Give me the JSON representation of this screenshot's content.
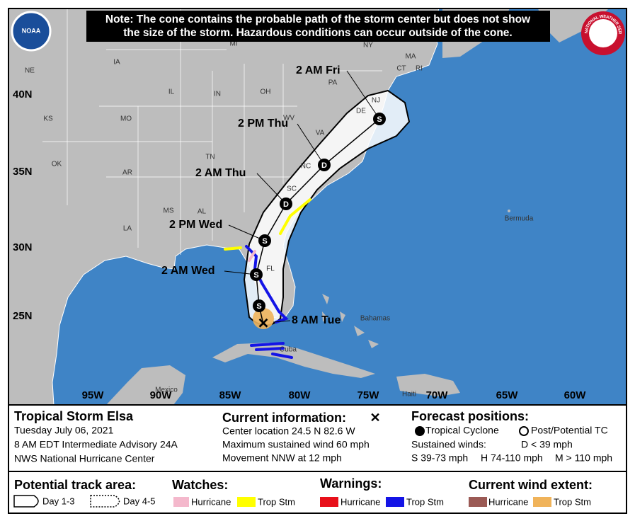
{
  "note": [
    "Note: The cone contains the probable path of the storm center but does not show",
    "the size of the storm. Hazardous conditions can occur outside of the cone."
  ],
  "logos": {
    "noaa": "NOAA",
    "nws": "NATIONAL WEATHER SERVICE"
  },
  "map": {
    "places": [
      "NE",
      "IA",
      "MI",
      "NY",
      "MA",
      "CT",
      "RI",
      "PA",
      "NJ",
      "DE",
      "OH",
      "IL",
      "IN",
      "WV",
      "KS",
      "MO",
      "VA",
      "TN",
      "NC",
      "OK",
      "AR",
      "SC",
      "MS",
      "AL",
      "LA",
      "FL",
      "Bermuda",
      "Bahamas",
      "Cuba",
      "Mexico",
      "Haiti"
    ],
    "latitudes": [
      "40N",
      "35N",
      "30N",
      "25N"
    ],
    "longitudes": [
      "95W",
      "90W",
      "85W",
      "80W",
      "75W",
      "70W",
      "65W",
      "60W"
    ],
    "current": "8 AM Tue",
    "forecast": [
      {
        "symbol": "S"
      },
      {
        "time": "2 AM Wed",
        "symbol": "S"
      },
      {
        "time": "2 PM Wed",
        "symbol": "S"
      },
      {
        "time": "2 AM Thu",
        "symbol": "D"
      },
      {
        "time": "2 PM Thu",
        "symbol": "D"
      },
      {
        "time": "2 AM Fri",
        "symbol": "S"
      }
    ]
  },
  "info": {
    "storm": {
      "title": "Tropical Storm Elsa",
      "date": "Tuesday July 06, 2021",
      "advisory": "8 AM EDT Intermediate Advisory 24A",
      "office": "NWS National Hurricane Center"
    },
    "current": {
      "heading": "Current information:",
      "lines": [
        "Center location 24.5 N 82.6 W",
        "Maximum sustained wind 60 mph",
        "Movement NNW at 12 mph"
      ]
    },
    "forecast": {
      "heading": "Forecast positions:",
      "tropical": "Tropical Cyclone",
      "post": "Post/Potential TC",
      "winds": "Sustained winds:",
      "d": "D < 39 mph",
      "s": "S 39-73 mph",
      "h": "H 74-110 mph",
      "m": "M > 110 mph"
    }
  },
  "legend": {
    "track": {
      "heading": "Potential track area:",
      "day13": "Day 1-3",
      "day45": "Day 4-5"
    },
    "watches": {
      "heading": "Watches:",
      "hurricane": "Hurricane",
      "storm": "Trop Stm"
    },
    "warnings": {
      "heading": "Warnings:",
      "hurricane": "Hurricane",
      "storm": "Trop Stm"
    },
    "wind": {
      "heading": "Current wind extent:",
      "hurricane": "Hurricane",
      "storm": "Trop Stm"
    }
  }
}
